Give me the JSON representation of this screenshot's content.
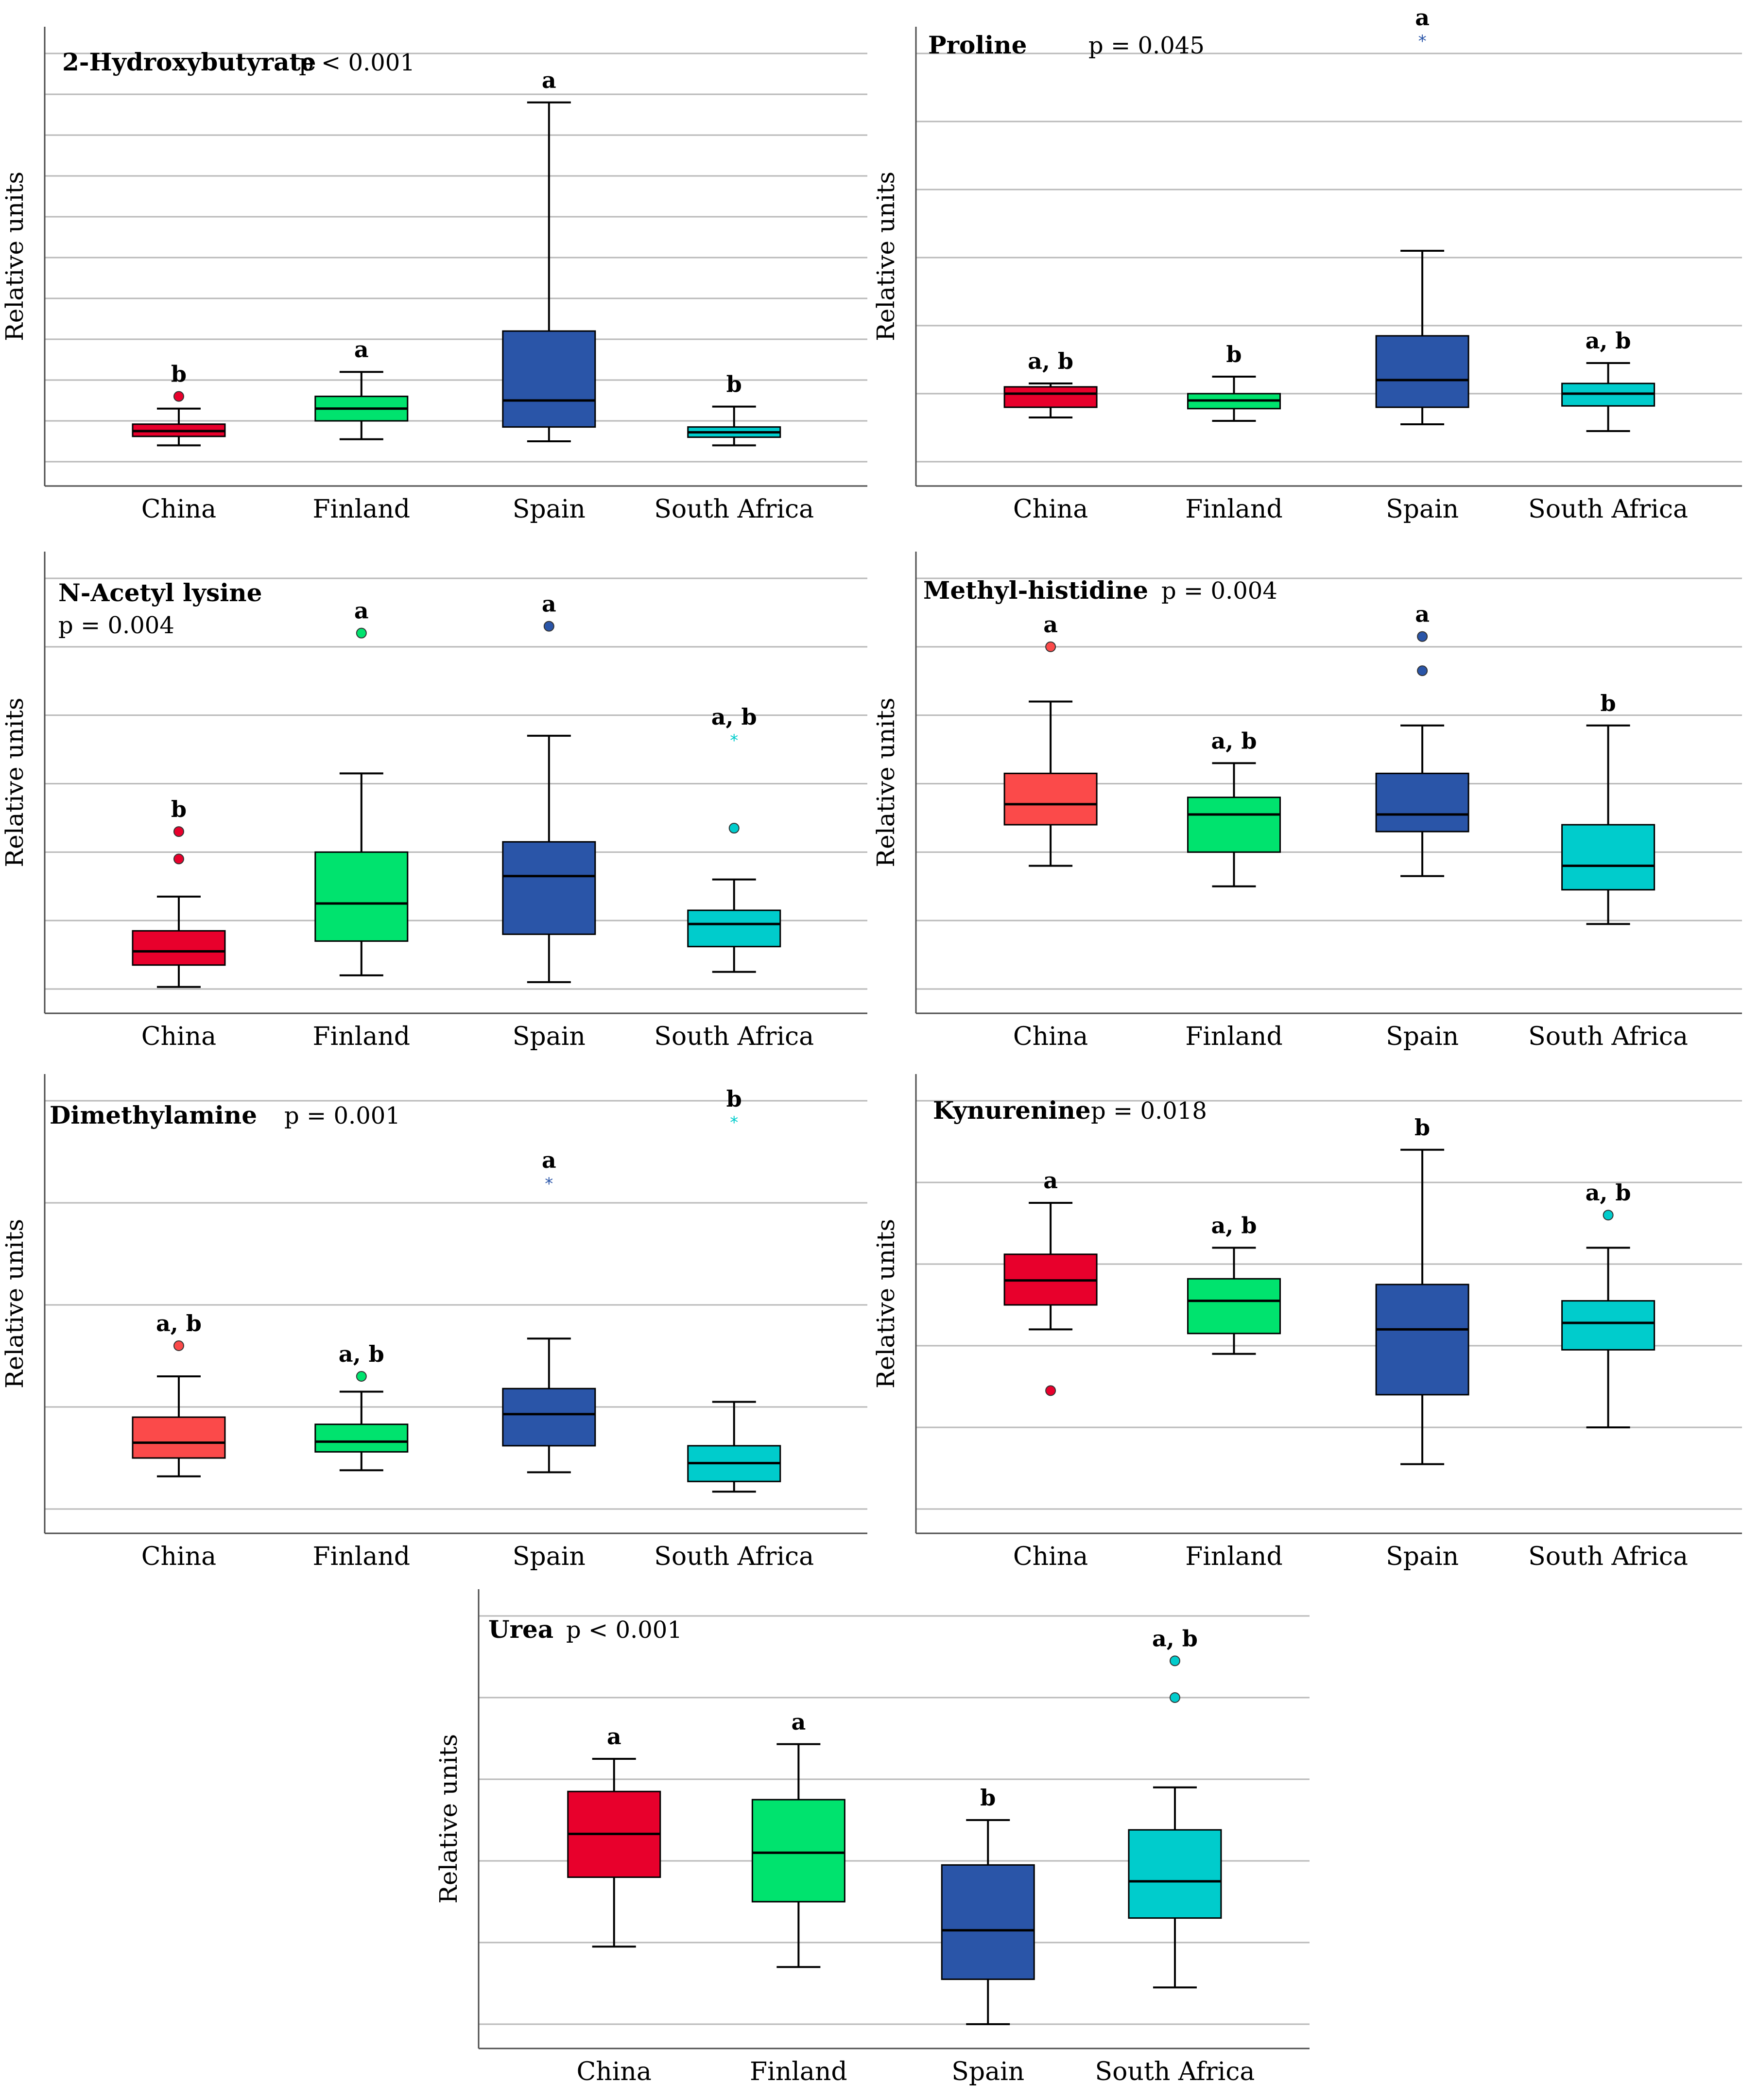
{
  "colors": {
    "China": "#e8002c",
    "China_light": "#fb4a4a",
    "Finland": "#00e36e",
    "Spain": "#2a55a8",
    "South Africa": "#00cccc"
  },
  "chart_data": [
    {
      "type": "box",
      "title": "2-Hydroxybutyrate",
      "pvalue": "p < 0.001",
      "ylabel": "Relative units",
      "ylim": [
        0,
        10
      ],
      "categories": [
        "China",
        "Finland",
        "Spain",
        "South Africa"
      ],
      "boxes": [
        {
          "whislo": 0.4,
          "q1": 0.62,
          "med": 0.75,
          "q3": 0.92,
          "whishi": 1.3,
          "fliers": [
            {
              "y": 1.6,
              "marker": "circle"
            }
          ],
          "letter": "b",
          "color": "China"
        },
        {
          "whislo": 0.55,
          "q1": 1.0,
          "med": 1.3,
          "q3": 1.6,
          "whishi": 2.2,
          "fliers": [],
          "letter": "a",
          "color": "Finland"
        },
        {
          "whislo": 0.5,
          "q1": 0.85,
          "med": 1.5,
          "q3": 3.2,
          "whishi": 8.8,
          "fliers": [],
          "letter": "a",
          "color": "Spain"
        },
        {
          "whislo": 0.4,
          "q1": 0.6,
          "med": 0.72,
          "q3": 0.85,
          "whishi": 1.35,
          "fliers": [],
          "letter": "b",
          "color": "South Africa"
        }
      ]
    },
    {
      "type": "box",
      "title": "Proline",
      "pvalue": "p = 0.045",
      "ylabel": "Relative units",
      "ylim": [
        0,
        6
      ],
      "categories": [
        "China",
        "Finland",
        "Spain",
        "South Africa"
      ],
      "boxes": [
        {
          "whislo": 0.65,
          "q1": 0.8,
          "med": 1.0,
          "q3": 1.1,
          "whishi": 1.15,
          "fliers": [],
          "letter": "a, b",
          "color": "China"
        },
        {
          "whislo": 0.6,
          "q1": 0.78,
          "med": 0.9,
          "q3": 1.0,
          "whishi": 1.25,
          "fliers": [],
          "letter": "b",
          "color": "Finland"
        },
        {
          "whislo": 0.55,
          "q1": 0.8,
          "med": 1.2,
          "q3": 1.85,
          "whishi": 3.1,
          "fliers": [
            {
              "y": 6.2,
              "marker": "star"
            }
          ],
          "letter": "a",
          "color": "Spain"
        },
        {
          "whislo": 0.45,
          "q1": 0.82,
          "med": 1.0,
          "q3": 1.15,
          "whishi": 1.45,
          "fliers": [],
          "letter": "a, b",
          "color": "South Africa"
        }
      ]
    },
    {
      "type": "box",
      "title": "N-Acetyl lysine",
      "pvalue": "p = 0.004",
      "ylabel": "Relative units",
      "ylim": [
        0,
        6
      ],
      "categories": [
        "China",
        "Finland",
        "Spain",
        "South Africa"
      ],
      "boxes": [
        {
          "whislo": 0.03,
          "q1": 0.35,
          "med": 0.55,
          "q3": 0.85,
          "whishi": 1.35,
          "fliers": [
            {
              "y": 1.9,
              "marker": "circle"
            },
            {
              "y": 2.3,
              "marker": "circle"
            }
          ],
          "letter": "b",
          "color": "China"
        },
        {
          "whislo": 0.2,
          "q1": 0.7,
          "med": 1.25,
          "q3": 2.0,
          "whishi": 3.15,
          "fliers": [
            {
              "y": 5.2,
              "marker": "circle"
            }
          ],
          "letter": "a",
          "color": "Finland"
        },
        {
          "whislo": 0.1,
          "q1": 0.8,
          "med": 1.65,
          "q3": 2.15,
          "whishi": 3.7,
          "fliers": [
            {
              "y": 5.3,
              "marker": "circle"
            }
          ],
          "letter": "a",
          "color": "Spain"
        },
        {
          "whislo": 0.25,
          "q1": 0.62,
          "med": 0.95,
          "q3": 1.15,
          "whishi": 1.6,
          "fliers": [
            {
              "y": 2.35,
              "marker": "circle"
            },
            {
              "y": 3.65,
              "marker": "star"
            }
          ],
          "letter": "a, b",
          "color": "South Africa"
        }
      ]
    },
    {
      "type": "box",
      "title": "Methyl-histidine",
      "pvalue": "p = 0.004",
      "ylabel": "Relative units",
      "ylim": [
        0,
        6
      ],
      "categories": [
        "China",
        "Finland",
        "Spain",
        "South Africa"
      ],
      "boxes": [
        {
          "whislo": 1.8,
          "q1": 2.4,
          "med": 2.7,
          "q3": 3.15,
          "whishi": 4.2,
          "fliers": [
            {
              "y": 5.0,
              "marker": "circle"
            }
          ],
          "letter": "a",
          "color": "China_light"
        },
        {
          "whislo": 1.5,
          "q1": 2.0,
          "med": 2.55,
          "q3": 2.8,
          "whishi": 3.3,
          "fliers": [],
          "letter": "a, b",
          "color": "Finland"
        },
        {
          "whislo": 1.65,
          "q1": 2.3,
          "med": 2.55,
          "q3": 3.15,
          "whishi": 3.85,
          "fliers": [
            {
              "y": 4.65,
              "marker": "circle"
            },
            {
              "y": 5.15,
              "marker": "circle"
            }
          ],
          "letter": "a",
          "color": "Spain"
        },
        {
          "whislo": 0.95,
          "q1": 1.45,
          "med": 1.8,
          "q3": 2.4,
          "whishi": 3.85,
          "fliers": [],
          "letter": "b",
          "color": "South Africa"
        }
      ]
    },
    {
      "type": "box",
      "title": "Dimethylamine",
      "pvalue": "p = 0.001",
      "ylabel": "Relative units",
      "ylim": [
        0,
        4
      ],
      "categories": [
        "China",
        "Finland",
        "Spain",
        "South Africa"
      ],
      "boxes": [
        {
          "whislo": 0.32,
          "q1": 0.5,
          "med": 0.65,
          "q3": 0.9,
          "whishi": 1.3,
          "fliers": [
            {
              "y": 1.6,
              "marker": "circle"
            }
          ],
          "letter": "a, b",
          "color": "China_light"
        },
        {
          "whislo": 0.38,
          "q1": 0.56,
          "med": 0.66,
          "q3": 0.83,
          "whishi": 1.15,
          "fliers": [
            {
              "y": 1.3,
              "marker": "circle"
            }
          ],
          "letter": "a, b",
          "color": "Finland"
        },
        {
          "whislo": 0.36,
          "q1": 0.62,
          "med": 0.93,
          "q3": 1.18,
          "whishi": 1.67,
          "fliers": [
            {
              "y": 3.2,
              "marker": "star"
            }
          ],
          "letter": "a",
          "color": "Spain"
        },
        {
          "whislo": 0.17,
          "q1": 0.27,
          "med": 0.45,
          "q3": 0.62,
          "whishi": 1.05,
          "fliers": [
            {
              "y": 3.8,
              "marker": "star"
            }
          ],
          "letter": "b",
          "color": "South Africa"
        }
      ]
    },
    {
      "type": "box",
      "title": "Kynurenine",
      "pvalue": "p = 0.018",
      "ylabel": "Relative units",
      "ylim": [
        0,
        5
      ],
      "categories": [
        "China",
        "Finland",
        "Spain",
        "South Africa"
      ],
      "boxes": [
        {
          "whislo": 2.2,
          "q1": 2.5,
          "med": 2.8,
          "q3": 3.12,
          "whishi": 3.75,
          "fliers": [
            {
              "y": 1.45,
              "marker": "circle"
            }
          ],
          "letter": "a",
          "color": "China"
        },
        {
          "whislo": 1.9,
          "q1": 2.15,
          "med": 2.55,
          "q3": 2.82,
          "whishi": 3.2,
          "fliers": [],
          "letter": "a, b",
          "color": "Finland"
        },
        {
          "whislo": 0.55,
          "q1": 1.4,
          "med": 2.2,
          "q3": 2.75,
          "whishi": 4.4,
          "fliers": [],
          "letter": "b",
          "color": "Spain"
        },
        {
          "whislo": 1.0,
          "q1": 1.95,
          "med": 2.28,
          "q3": 2.55,
          "whishi": 3.2,
          "fliers": [
            {
              "y": 3.6,
              "marker": "circle"
            }
          ],
          "letter": "a, b",
          "color": "South Africa"
        }
      ]
    },
    {
      "type": "box",
      "title": "Urea",
      "pvalue": "p < 0.001",
      "ylabel": "Relative units",
      "ylim": [
        0,
        5
      ],
      "categories": [
        "China",
        "Finland",
        "Spain",
        "South Africa"
      ],
      "boxes": [
        {
          "whislo": 0.95,
          "q1": 1.8,
          "med": 2.33,
          "q3": 2.85,
          "whishi": 3.25,
          "fliers": [],
          "letter": "a",
          "color": "China"
        },
        {
          "whislo": 0.7,
          "q1": 1.5,
          "med": 2.1,
          "q3": 2.75,
          "whishi": 3.43,
          "fliers": [],
          "letter": "a",
          "color": "Finland"
        },
        {
          "whislo": 0.0,
          "q1": 0.55,
          "med": 1.15,
          "q3": 1.95,
          "whishi": 2.5,
          "fliers": [],
          "letter": "b",
          "color": "Spain"
        },
        {
          "whislo": 0.45,
          "q1": 1.3,
          "med": 1.75,
          "q3": 2.38,
          "whishi": 2.9,
          "fliers": [
            {
              "y": 4.0,
              "marker": "circle"
            },
            {
              "y": 4.45,
              "marker": "circle"
            }
          ],
          "letter": "a, b",
          "color": "South Africa"
        }
      ]
    }
  ]
}
